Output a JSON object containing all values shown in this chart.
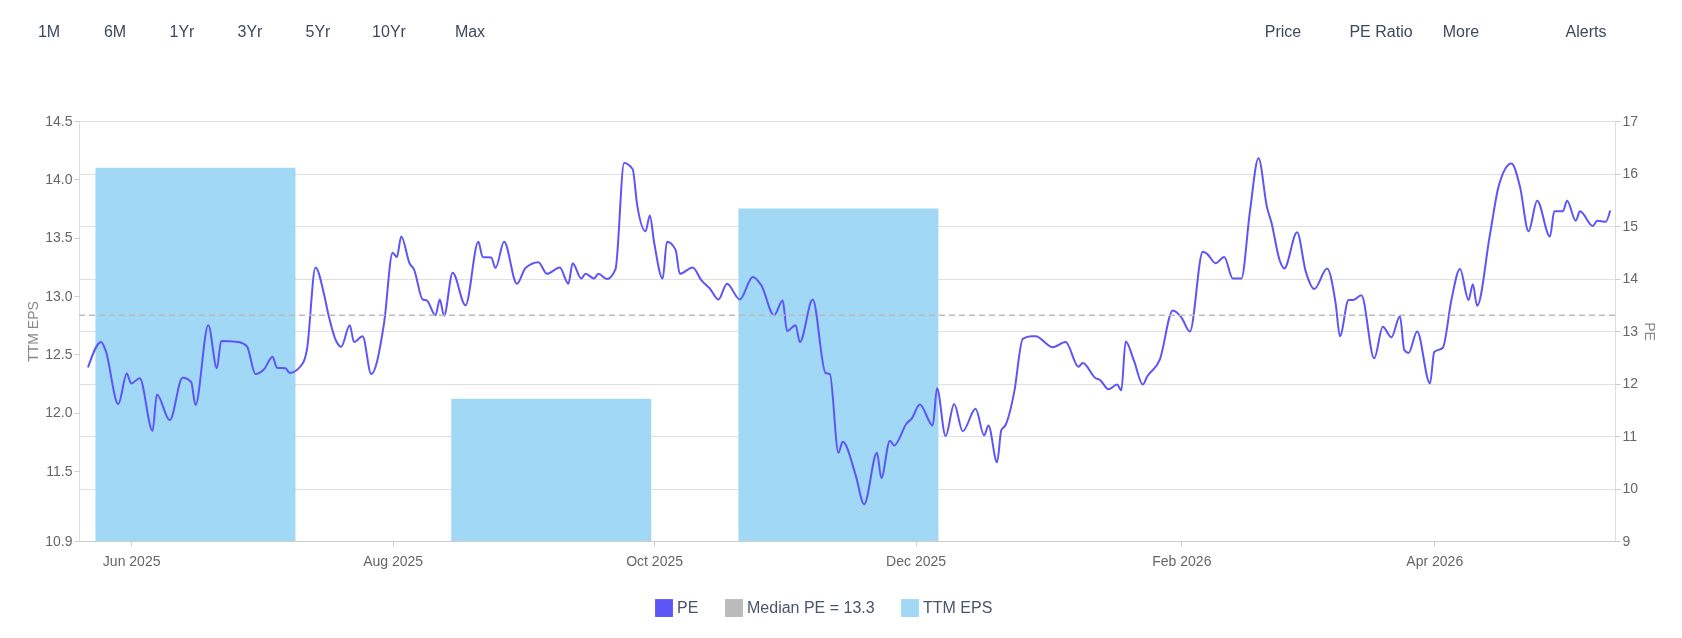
{
  "chart_data": {
    "type": "line",
    "ylabel": "TTM EPS",
    "y2label": "PE",
    "annotations": [
      "1M",
      "6M",
      "1Yr",
      "3Yr",
      "5Yr",
      "10Yr",
      "Max",
      "Price",
      "PE Ratio",
      "More",
      "Alerts"
    ],
    "xlim": [
      "2025-05-21",
      "2026-05-12"
    ],
    "xticks": [
      {
        "value": "2025-06-01",
        "label": "Jun 2025"
      },
      {
        "value": "2025-08-01",
        "label": "Aug 2025"
      },
      {
        "value": "2025-10-01",
        "label": "Oct 2025"
      },
      {
        "value": "2025-12-01",
        "label": "Dec 2025"
      },
      {
        "value": "2026-02-01",
        "label": "Feb 2026"
      },
      {
        "value": "2026-04-01",
        "label": "Apr 2026"
      }
    ],
    "ylim": [
      10.9,
      14.5
    ],
    "yticks": [
      14.5,
      {
        "value": 14,
        "label": "14.0"
      },
      13.5,
      {
        "value": 13,
        "label": "13.0"
      },
      12.5,
      {
        "value": 12,
        "label": "12.0"
      },
      11.5,
      10.9
    ],
    "y2lim": [
      9,
      17
    ],
    "y2ticks": [
      9,
      10,
      11,
      12,
      13,
      14,
      15,
      16,
      17
    ],
    "grid": "y2",
    "legend": "bottom",
    "ref_lines": [
      {
        "axis": "y2",
        "value": 13.3,
        "label": "Median PE = 13.3",
        "color": "#bbbbbb",
        "line_style": "dashed"
      }
    ],
    "series": [
      {
        "name": "PE",
        "axis": "y2",
        "color": "#5e55f6",
        "x": [
          "2025-05-22",
          "2025-05-25",
          "2025-05-26",
          "2025-05-29",
          "2025-05-31",
          "2025-06-01",
          "2025-06-03",
          "2025-06-06",
          "2025-06-07",
          "2025-06-10",
          "2025-06-13",
          "2025-06-15",
          "2025-06-16",
          "2025-06-19",
          "2025-06-21",
          "2025-06-22",
          "2025-06-26",
          "2025-06-28",
          "2025-06-30",
          "2025-07-02",
          "2025-07-04",
          "2025-07-05",
          "2025-07-07",
          "2025-07-08",
          "2025-07-11",
          "2025-07-12",
          "2025-07-14",
          "2025-07-16",
          "2025-07-17",
          "2025-07-19",
          "2025-07-20",
          "2025-07-22",
          "2025-07-23",
          "2025-07-25",
          "2025-07-27",
          "2025-07-30",
          "2025-08-01",
          "2025-08-02",
          "2025-08-03",
          "2025-08-05",
          "2025-08-06",
          "2025-08-08",
          "2025-08-09",
          "2025-08-11",
          "2025-08-12",
          "2025-08-13",
          "2025-08-15",
          "2025-08-18",
          "2025-08-21",
          "2025-08-22",
          "2025-08-24",
          "2025-08-25",
          "2025-08-27",
          "2025-08-30",
          "2025-09-01",
          "2025-09-04",
          "2025-09-06",
          "2025-09-09",
          "2025-09-11",
          "2025-09-12",
          "2025-09-14",
          "2025-09-15",
          "2025-09-17",
          "2025-09-18",
          "2025-09-20",
          "2025-09-22",
          "2025-09-24",
          "2025-09-26",
          "2025-09-27",
          "2025-09-29",
          "2025-09-30",
          "2025-10-01",
          "2025-10-03",
          "2025-10-04",
          "2025-10-06",
          "2025-10-07",
          "2025-10-10",
          "2025-10-12",
          "2025-10-14",
          "2025-10-16",
          "2025-10-18",
          "2025-10-21",
          "2025-10-24",
          "2025-10-26",
          "2025-10-29",
          "2025-10-31",
          "2025-11-01",
          "2025-11-03",
          "2025-11-04",
          "2025-11-07",
          "2025-11-10",
          "2025-11-11",
          "2025-11-13",
          "2025-11-14",
          "2025-11-17",
          "2025-11-19",
          "2025-11-22",
          "2025-11-23",
          "2025-11-25",
          "2025-11-26",
          "2025-11-29",
          "2025-11-30",
          "2025-12-02",
          "2025-12-05",
          "2025-12-06",
          "2025-12-08",
          "2025-12-10",
          "2025-12-12",
          "2025-12-15",
          "2025-12-17",
          "2025-12-18",
          "2025-12-20",
          "2025-12-21",
          "2025-12-22",
          "2025-12-24",
          "2025-12-26",
          "2025-12-28",
          "2025-12-29",
          "2026-01-02",
          "2026-01-05",
          "2026-01-08",
          "2026-01-09",
          "2026-01-12",
          "2026-01-13",
          "2026-01-15",
          "2026-01-17",
          "2026-01-18",
          "2026-01-19",
          "2026-01-21",
          "2026-01-23",
          "2026-01-24",
          "2026-01-27",
          "2026-01-30",
          "2026-02-01",
          "2026-02-03",
          "2026-02-06",
          "2026-02-07",
          "2026-02-09",
          "2026-02-11",
          "2026-02-13",
          "2026-02-15",
          "2026-02-17",
          "2026-02-19",
          "2026-02-21",
          "2026-02-22",
          "2026-02-24",
          "2026-02-25",
          "2026-02-28",
          "2026-03-02",
          "2026-03-04",
          "2026-03-07",
          "2026-03-09",
          "2026-03-10",
          "2026-03-12",
          "2026-03-13",
          "2026-03-15",
          "2026-03-18",
          "2026-03-20",
          "2026-03-22",
          "2026-03-24",
          "2026-03-25",
          "2026-03-26",
          "2026-03-28",
          "2026-03-31",
          "2026-04-01",
          "2026-04-03",
          "2026-04-05",
          "2026-04-07",
          "2026-04-09",
          "2026-04-10",
          "2026-04-11",
          "2026-04-14",
          "2026-04-16",
          "2026-04-19",
          "2026-04-21",
          "2026-04-23",
          "2026-04-25",
          "2026-04-28",
          "2026-04-29",
          "2026-05-01",
          "2026-05-02",
          "2026-05-04",
          "2026-05-05",
          "2026-05-08",
          "2026-05-09",
          "2026-05-11",
          "2026-05-12"
        ],
        "values": [
          12.32,
          12.79,
          12.64,
          11.61,
          12.19,
          12.0,
          12.1,
          11.1,
          11.79,
          11.3,
          12.11,
          12.03,
          11.59,
          13.11,
          12.29,
          12.81,
          12.79,
          12.71,
          12.18,
          12.27,
          12.51,
          12.3,
          12.29,
          12.2,
          12.38,
          12.64,
          14.21,
          13.7,
          13.32,
          12.78,
          12.7,
          13.11,
          12.79,
          12.9,
          12.18,
          13.15,
          14.49,
          14.41,
          14.8,
          14.28,
          14.17,
          13.6,
          13.58,
          13.3,
          13.6,
          13.29,
          14.11,
          13.49,
          14.7,
          14.41,
          14.4,
          14.2,
          14.7,
          13.9,
          14.2,
          14.31,
          14.09,
          14.21,
          13.9,
          14.29,
          14.0,
          14.09,
          14.0,
          14.09,
          13.99,
          14.18,
          16.2,
          16.08,
          15.43,
          14.9,
          15.2,
          14.69,
          14.0,
          14.7,
          14.55,
          14.09,
          14.21,
          13.97,
          13.81,
          13.6,
          13.9,
          13.6,
          14.03,
          13.87,
          13.3,
          13.58,
          13.0,
          13.11,
          12.79,
          13.6,
          12.2,
          12.18,
          10.68,
          10.89,
          10.26,
          9.7,
          10.68,
          10.2,
          10.91,
          10.82,
          11.25,
          11.32,
          11.6,
          11.2,
          11.91,
          11.0,
          11.61,
          11.09,
          11.52,
          11.01,
          11.2,
          10.5,
          11.11,
          11.21,
          11.83,
          12.85,
          12.9,
          12.9,
          12.69,
          12.79,
          12.32,
          12.39,
          12.1,
          12.07,
          11.89,
          11.98,
          11.87,
          12.8,
          12.42,
          11.98,
          12.13,
          12.46,
          13.39,
          13.26,
          12.99,
          14.51,
          14.47,
          14.29,
          14.41,
          14.0,
          14.0,
          15.28,
          16.29,
          15.35,
          15.07,
          14.33,
          14.19,
          14.88,
          14.14,
          13.8,
          14.19,
          13.52,
          12.9,
          13.59,
          13.59,
          13.68,
          12.48,
          13.08,
          12.88,
          13.28,
          12.64,
          12.58,
          12.99,
          12.0,
          12.6,
          12.68,
          13.59,
          14.18,
          13.59,
          13.89,
          13.48,
          14.84,
          15.75,
          16.19,
          15.75,
          14.9,
          15.48,
          14.8,
          15.28,
          15.28,
          15.48,
          15.1,
          15.28,
          15.0,
          15.1,
          15.08,
          15.28
        ]
      },
      {
        "name": "TTM EPS",
        "type": "bar",
        "color": "#a1d8f5",
        "x": [
          "2025-06-16",
          "2025-09-07",
          "2025-11-13"
        ],
        "values": [
          14.1,
          12.12,
          13.75
        ]
      }
    ]
  }
}
